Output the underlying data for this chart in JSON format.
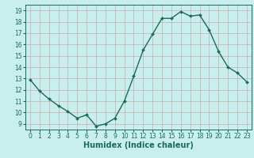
{
  "x": [
    0,
    1,
    2,
    3,
    4,
    5,
    6,
    7,
    8,
    9,
    10,
    11,
    12,
    13,
    14,
    15,
    16,
    17,
    18,
    19,
    20,
    21,
    22,
    23
  ],
  "y": [
    12.9,
    11.9,
    11.2,
    10.6,
    10.1,
    9.5,
    9.8,
    8.8,
    9.0,
    9.5,
    11.0,
    13.2,
    15.5,
    16.9,
    18.3,
    18.3,
    18.9,
    18.5,
    18.6,
    17.3,
    15.4,
    14.0,
    13.5,
    12.7
  ],
  "line_color": "#1a6b5a",
  "marker": "D",
  "marker_size": 2.0,
  "bg_color": "#c8eeee",
  "grid_color": "#aaaaaa",
  "xlabel": "Humidex (Indice chaleur)",
  "xlabel_fontsize": 7,
  "xlim": [
    -0.5,
    23.5
  ],
  "ylim": [
    8.5,
    19.5
  ],
  "xticks": [
    0,
    1,
    2,
    3,
    4,
    5,
    6,
    7,
    8,
    9,
    10,
    11,
    12,
    13,
    14,
    15,
    16,
    17,
    18,
    19,
    20,
    21,
    22,
    23
  ],
  "yticks": [
    9,
    10,
    11,
    12,
    13,
    14,
    15,
    16,
    17,
    18,
    19
  ],
  "tick_fontsize": 5.5,
  "line_width": 1.0
}
